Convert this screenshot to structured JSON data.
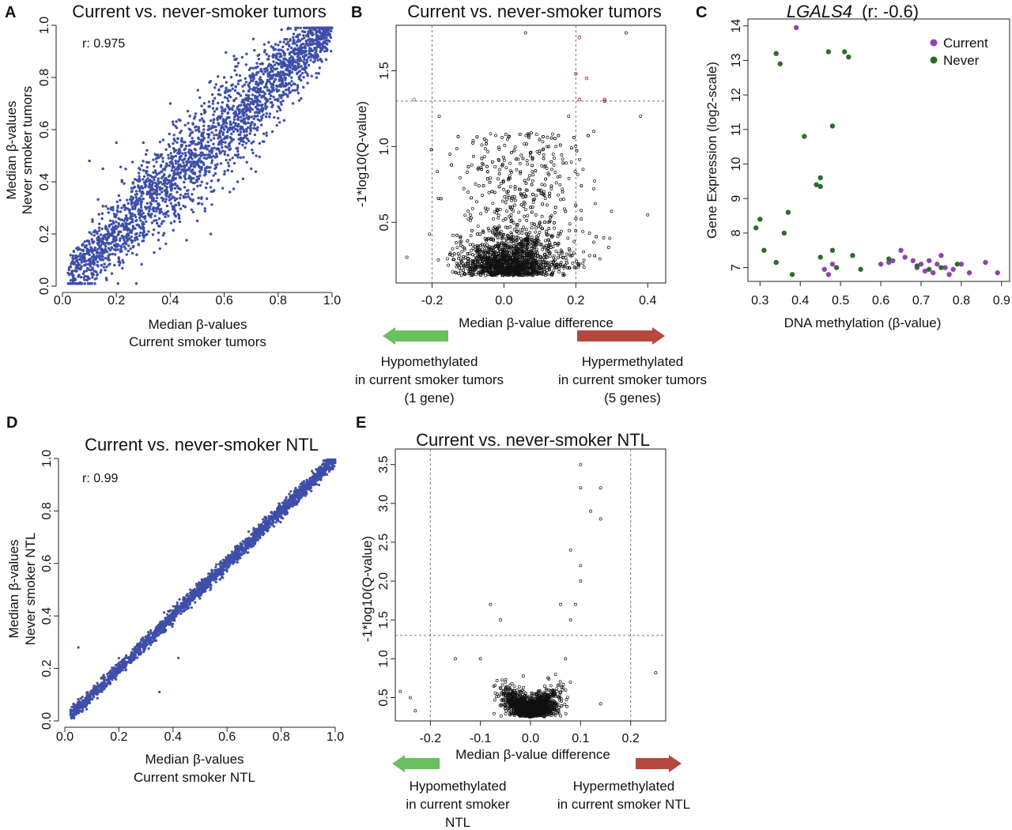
{
  "panels": {
    "A": {
      "letter": "A",
      "title": "Current vs. never-smoker tumors",
      "xlabel1": "Median β-values",
      "xlabel2": "Current smoker tumors",
      "ylabel1": "Median β-values",
      "ylabel2": "Never smoker  tumors",
      "r": "r: 0.975"
    },
    "B": {
      "letter": "B",
      "title": "Current vs. never-smoker tumors",
      "xlabel": "Median β-value difference",
      "ylabel": "-1*log10(Q-value)",
      "hypo1": "Hypomethylated",
      "hypo2": "in current smoker tumors",
      "hypo3": "(1 gene)",
      "hyper1": "Hypermethylated",
      "hyper2": "in current smoker tumors",
      "hyper3": "(5 genes)"
    },
    "C": {
      "letter": "C",
      "title_gene": "LGALS4",
      "title_r": "(r: -0.6)",
      "xlabel": "DNA methylation (β-value)",
      "ylabel": "Gene Expression  (log2-scale)",
      "legend": [
        "Current",
        "Never"
      ]
    },
    "D": {
      "letter": "D",
      "title": "Current vs. never-smoker NTL",
      "xlabel1": "Median β-values",
      "xlabel2": "Current smoker NTL",
      "ylabel1": "Median β-values",
      "ylabel2": "Never smoker NTL",
      "r": "r: 0.99"
    },
    "E": {
      "letter": "E",
      "title": "Current vs. never-smoker NTL",
      "xlabel": "Median β-value difference",
      "ylabel": "-1*log10(Q-value)",
      "hypo1": "Hypomethylated",
      "hypo2": "in current smoker",
      "hypo3": "NTL",
      "hyper1": "Hypermethylated",
      "hyper2": "in current smoker NTL"
    }
  },
  "colors": {
    "scatter_blue": "#3f4fa8",
    "current": "#8e44ad",
    "never": "#2e6b2e",
    "arrow_green": "#6abf5e",
    "arrow_red": "#b5473f",
    "sig_red": "#c0392b",
    "sig_green": "#4caf50"
  },
  "chart_data": [
    {
      "id": "A",
      "type": "scatter",
      "title": "Current vs. never-smoker tumors",
      "r": 0.975,
      "xlim": [
        0,
        1
      ],
      "ylim": [
        0,
        1
      ],
      "xticks": [
        0.0,
        0.2,
        0.4,
        0.6,
        0.8,
        1.0
      ],
      "yticks": [
        0.0,
        0.2,
        0.4,
        0.6,
        0.8,
        1.0
      ],
      "xlabel": "Median β-values Current smoker tumors",
      "ylabel": "Median β-values Never smoker  tumors",
      "points": [
        [
          0.05,
          0.06
        ],
        [
          0.08,
          0.1
        ],
        [
          0.1,
          0.12
        ],
        [
          0.12,
          0.11
        ],
        [
          0.15,
          0.18
        ],
        [
          0.18,
          0.2
        ],
        [
          0.2,
          0.22
        ],
        [
          0.22,
          0.3
        ],
        [
          0.25,
          0.24
        ],
        [
          0.28,
          0.33
        ],
        [
          0.3,
          0.28
        ],
        [
          0.32,
          0.38
        ],
        [
          0.35,
          0.35
        ],
        [
          0.38,
          0.45
        ],
        [
          0.4,
          0.38
        ],
        [
          0.42,
          0.48
        ],
        [
          0.45,
          0.44
        ],
        [
          0.48,
          0.55
        ],
        [
          0.5,
          0.5
        ],
        [
          0.52,
          0.58
        ],
        [
          0.55,
          0.52
        ],
        [
          0.58,
          0.62
        ],
        [
          0.6,
          0.6
        ],
        [
          0.62,
          0.68
        ],
        [
          0.65,
          0.64
        ],
        [
          0.68,
          0.72
        ],
        [
          0.7,
          0.7
        ],
        [
          0.72,
          0.76
        ],
        [
          0.75,
          0.74
        ],
        [
          0.78,
          0.8
        ],
        [
          0.8,
          0.82
        ],
        [
          0.82,
          0.85
        ],
        [
          0.85,
          0.86
        ],
        [
          0.88,
          0.9
        ],
        [
          0.9,
          0.92
        ],
        [
          0.93,
          0.94
        ],
        [
          0.96,
          0.96
        ],
        [
          0.98,
          0.98
        ],
        [
          0.15,
          0.45
        ],
        [
          0.1,
          0.48
        ],
        [
          0.2,
          0.55
        ],
        [
          0.4,
          0.7
        ],
        [
          0.5,
          0.25
        ],
        [
          0.55,
          0.2
        ],
        [
          0.6,
          0.8
        ],
        [
          0.3,
          0.55
        ],
        [
          0.7,
          0.45
        ],
        [
          0.65,
          0.4
        ]
      ]
    },
    {
      "id": "B",
      "type": "scatter",
      "title": "Current vs. never-smoker tumors",
      "xlim": [
        -0.3,
        0.45
      ],
      "ylim": [
        0.1,
        1.8
      ],
      "xticks": [
        -0.2,
        0.0,
        0.2,
        0.4
      ],
      "yticks": [
        0.5,
        1.0,
        1.5
      ],
      "thresholds": {
        "x": [
          -0.2,
          0.2
        ],
        "y": 1.3
      },
      "xlabel": "Median β-value difference",
      "ylabel": "-1*log10(Q-value)",
      "significant": {
        "hypo": 1,
        "hyper": 5
      },
      "points": [
        [
          -0.12,
          0.25
        ],
        [
          -0.05,
          0.3
        ],
        [
          0.0,
          0.2
        ],
        [
          0.05,
          0.35
        ],
        [
          0.1,
          0.5
        ],
        [
          0.15,
          0.8
        ],
        [
          -0.1,
          0.7
        ],
        [
          0.12,
          1.0
        ],
        [
          0.18,
          1.2
        ],
        [
          -0.15,
          0.95
        ],
        [
          0.08,
          0.6
        ],
        [
          -0.02,
          0.45
        ],
        [
          0.02,
          0.55
        ],
        [
          0.22,
          0.85
        ],
        [
          -0.18,
          1.2
        ],
        [
          0.38,
          1.2
        ],
        [
          0.28,
          1.3
        ],
        [
          0.34,
          1.75
        ],
        [
          -0.27,
          0.27
        ],
        [
          0.4,
          0.55
        ],
        [
          0.06,
          1.75
        ],
        [
          0.25,
          1.1
        ]
      ],
      "sig_points": [
        [
          0.21,
          1.72,
          "hyper"
        ],
        [
          0.2,
          1.48,
          "hyper"
        ],
        [
          0.21,
          1.31,
          "hyper"
        ],
        [
          0.28,
          1.31,
          "hyper"
        ],
        [
          0.23,
          1.45,
          "hyper"
        ],
        [
          -0.25,
          1.31,
          "hypo"
        ]
      ]
    },
    {
      "id": "C",
      "type": "scatter",
      "title": "LGALS4  (r: -0.6)",
      "r": -0.6,
      "xlim": [
        0.27,
        0.92
      ],
      "ylim": [
        6.6,
        14.2
      ],
      "xticks": [
        0.3,
        0.4,
        0.5,
        0.6,
        0.7,
        0.8,
        0.9
      ],
      "yticks": [
        7,
        8,
        9,
        10,
        11,
        12,
        13,
        14
      ],
      "xlabel": "DNA methylation (β-value)",
      "ylabel": "Gene Expression  (log2-scale)",
      "series": [
        {
          "name": "Current",
          "points": [
            [
              0.39,
              13.95
            ],
            [
              0.46,
              6.95
            ],
            [
              0.47,
              6.8
            ],
            [
              0.48,
              7.1
            ],
            [
              0.6,
              7.1
            ],
            [
              0.62,
              7.15
            ],
            [
              0.63,
              7.2
            ],
            [
              0.65,
              7.5
            ],
            [
              0.66,
              7.3
            ],
            [
              0.68,
              7.2
            ],
            [
              0.69,
              7.0
            ],
            [
              0.7,
              7.1
            ],
            [
              0.71,
              6.9
            ],
            [
              0.72,
              7.2
            ],
            [
              0.73,
              6.85
            ],
            [
              0.74,
              7.1
            ],
            [
              0.75,
              7.35
            ],
            [
              0.76,
              7.0
            ],
            [
              0.77,
              6.8
            ],
            [
              0.78,
              6.95
            ],
            [
              0.8,
              7.1
            ],
            [
              0.82,
              6.85
            ],
            [
              0.86,
              7.15
            ],
            [
              0.89,
              6.85
            ]
          ]
        },
        {
          "name": "Never",
          "points": [
            [
              0.29,
              8.15
            ],
            [
              0.3,
              8.4
            ],
            [
              0.31,
              7.5
            ],
            [
              0.34,
              13.2
            ],
            [
              0.35,
              12.9
            ],
            [
              0.36,
              8.0
            ],
            [
              0.37,
              8.6
            ],
            [
              0.38,
              6.8
            ],
            [
              0.41,
              10.8
            ],
            [
              0.44,
              9.4
            ],
            [
              0.45,
              9.6
            ],
            [
              0.45,
              9.35
            ],
            [
              0.47,
              13.25
            ],
            [
              0.48,
              11.1
            ],
            [
              0.48,
              7.5
            ],
            [
              0.49,
              7.0
            ],
            [
              0.51,
              13.25
            ],
            [
              0.52,
              13.1
            ],
            [
              0.53,
              7.35
            ],
            [
              0.55,
              6.95
            ],
            [
              0.45,
              7.3
            ],
            [
              0.34,
              7.15
            ],
            [
              0.62,
              7.25
            ],
            [
              0.69,
              7.05
            ],
            [
              0.72,
              6.95
            ],
            [
              0.75,
              7.0
            ],
            [
              0.79,
              7.1
            ]
          ]
        }
      ]
    },
    {
      "id": "D",
      "type": "scatter",
      "title": "Current vs. never-smoker NTL",
      "r": 0.99,
      "xlim": [
        0,
        1
      ],
      "ylim": [
        0,
        1
      ],
      "xticks": [
        0.0,
        0.2,
        0.4,
        0.6,
        0.8,
        1.0
      ],
      "yticks": [
        0.0,
        0.2,
        0.4,
        0.6,
        0.8,
        1.0
      ],
      "xlabel": "Median β-values Current smoker NTL",
      "ylabel": "Median β-values Never smoker NTL",
      "points": [
        [
          0.04,
          0.04
        ],
        [
          0.08,
          0.09
        ],
        [
          0.12,
          0.12
        ],
        [
          0.16,
          0.17
        ],
        [
          0.2,
          0.2
        ],
        [
          0.25,
          0.26
        ],
        [
          0.3,
          0.3
        ],
        [
          0.35,
          0.36
        ],
        [
          0.4,
          0.4
        ],
        [
          0.45,
          0.46
        ],
        [
          0.5,
          0.5
        ],
        [
          0.55,
          0.56
        ],
        [
          0.6,
          0.6
        ],
        [
          0.65,
          0.66
        ],
        [
          0.7,
          0.7
        ],
        [
          0.75,
          0.76
        ],
        [
          0.8,
          0.8
        ],
        [
          0.85,
          0.86
        ],
        [
          0.9,
          0.9
        ],
        [
          0.95,
          0.96
        ],
        [
          0.98,
          0.99
        ],
        [
          0.05,
          0.28
        ],
        [
          0.42,
          0.24
        ],
        [
          0.35,
          0.11
        ]
      ]
    },
    {
      "id": "E",
      "type": "scatter",
      "title": "Current vs. never-smoker NTL",
      "xlim": [
        -0.27,
        0.27
      ],
      "ylim": [
        0.2,
        3.7
      ],
      "xticks": [
        -0.2,
        -0.1,
        0.0,
        0.1,
        0.2
      ],
      "yticks": [
        0.5,
        1.0,
        1.5,
        2.0,
        2.5,
        3.0,
        3.5
      ],
      "thresholds": {
        "x": [
          -0.2,
          0.2
        ],
        "y": 1.3
      },
      "xlabel": "Median β-value difference",
      "ylabel": "-1*log10(Q-value)",
      "points": [
        [
          0.0,
          0.3
        ],
        [
          0.02,
          0.5
        ],
        [
          -0.02,
          0.45
        ],
        [
          0.05,
          0.8
        ],
        [
          -0.05,
          0.7
        ],
        [
          0.07,
          1.0
        ],
        [
          0.08,
          1.5
        ],
        [
          0.09,
          1.7
        ],
        [
          0.1,
          2.2
        ],
        [
          0.1,
          3.5
        ],
        [
          0.1,
          3.2
        ],
        [
          0.12,
          2.9
        ],
        [
          0.14,
          3.2
        ],
        [
          0.14,
          2.8
        ],
        [
          0.06,
          1.7
        ],
        [
          -0.08,
          1.7
        ],
        [
          -0.06,
          1.5
        ],
        [
          -0.26,
          0.58
        ],
        [
          -0.24,
          0.5
        ],
        [
          -0.23,
          0.33
        ],
        [
          -0.1,
          1.0
        ],
        [
          -0.15,
          1.0
        ],
        [
          0.25,
          0.82
        ],
        [
          0.14,
          0.42
        ],
        [
          0.08,
          2.4
        ],
        [
          0.1,
          2.0
        ]
      ]
    }
  ]
}
